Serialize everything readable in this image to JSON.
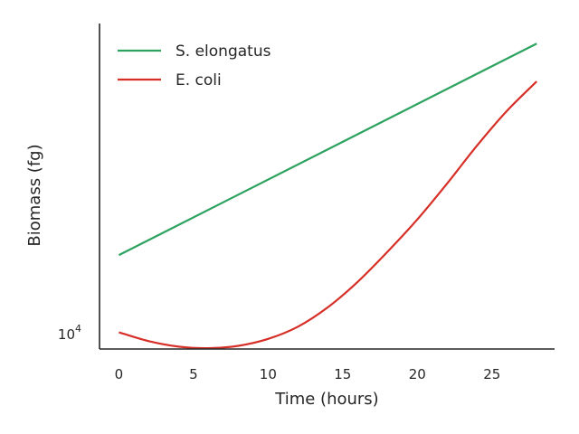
{
  "chart_data": {
    "type": "line",
    "title": "",
    "xlabel": "Time (hours)",
    "ylabel": "Biomass (fg)",
    "yscale": "log",
    "xlim": [
      -1.3,
      29.2
    ],
    "ylim": [
      9000,
      85000
    ],
    "xticks": [
      0,
      5,
      10,
      15,
      20,
      25
    ],
    "yticks": [
      {
        "value": 10000,
        "base": "10",
        "exponent": "4"
      }
    ],
    "grid": false,
    "legend": "top-left",
    "series": [
      {
        "name": "S. elongatus",
        "color": "#2ca25f",
        "x": [
          0,
          28
        ],
        "y": [
          17200,
          74000
        ]
      },
      {
        "name": "E. coli",
        "color": "#d62f27",
        "x": [
          0,
          2,
          4,
          6,
          8,
          10,
          12,
          14,
          16,
          18,
          20,
          22,
          24,
          26,
          28
        ],
        "y": [
          10100,
          9500,
          9150,
          9050,
          9200,
          9650,
          10500,
          12000,
          14300,
          17600,
          22000,
          28200,
          36600,
          46500,
          57000
        ]
      }
    ]
  }
}
